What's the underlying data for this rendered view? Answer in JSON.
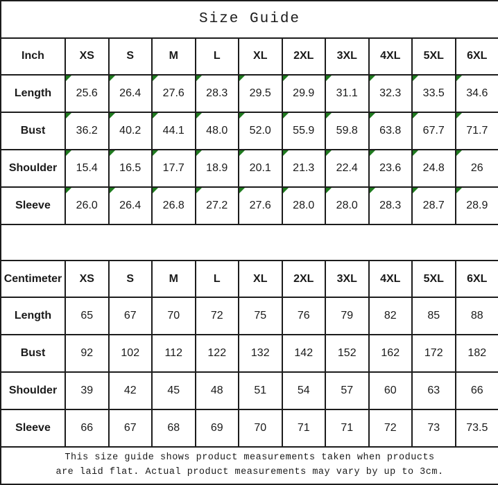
{
  "title": "Size Guide",
  "size_columns": [
    "XS",
    "S",
    "M",
    "L",
    "XL",
    "2XL",
    "3XL",
    "4XL",
    "5XL",
    "6XL"
  ],
  "tables": [
    {
      "unit_label": "Inch",
      "has_flag_markers": true,
      "rows": [
        {
          "label": "Length",
          "values": [
            "25.6",
            "26.4",
            "27.6",
            "28.3",
            "29.5",
            "29.9",
            "31.1",
            "32.3",
            "33.5",
            "34.6"
          ]
        },
        {
          "label": "Bust",
          "values": [
            "36.2",
            "40.2",
            "44.1",
            "48.0",
            "52.0",
            "55.9",
            "59.8",
            "63.8",
            "67.7",
            "71.7"
          ]
        },
        {
          "label": "Shoulder",
          "values": [
            "15.4",
            "16.5",
            "17.7",
            "18.9",
            "20.1",
            "21.3",
            "22.4",
            "23.6",
            "24.8",
            "26"
          ]
        },
        {
          "label": "Sleeve",
          "values": [
            "26.0",
            "26.4",
            "26.8",
            "27.2",
            "27.6",
            "28.0",
            "28.0",
            "28.3",
            "28.7",
            "28.9"
          ]
        }
      ]
    },
    {
      "unit_label": "Centimeter",
      "has_flag_markers": false,
      "rows": [
        {
          "label": "Length",
          "values": [
            "65",
            "67",
            "70",
            "72",
            "75",
            "76",
            "79",
            "82",
            "85",
            "88"
          ]
        },
        {
          "label": "Bust",
          "values": [
            "92",
            "102",
            "112",
            "122",
            "132",
            "142",
            "152",
            "162",
            "172",
            "182"
          ]
        },
        {
          "label": "Shoulder",
          "values": [
            "39",
            "42",
            "45",
            "48",
            "51",
            "54",
            "57",
            "60",
            "63",
            "66"
          ]
        },
        {
          "label": "Sleeve",
          "values": [
            "66",
            "67",
            "68",
            "69",
            "70",
            "71",
            "71",
            "72",
            "73",
            "73.5"
          ]
        }
      ]
    }
  ],
  "footer": {
    "line1": "This size guide shows product measurements taken when products",
    "line2": "are laid flat. Actual product measurements may vary by up to 3cm."
  },
  "colors": {
    "border": "#1c1c1c",
    "text": "#1a1a1a",
    "background": "#ffffff",
    "flag_marker_green": "#1f7a1f"
  }
}
